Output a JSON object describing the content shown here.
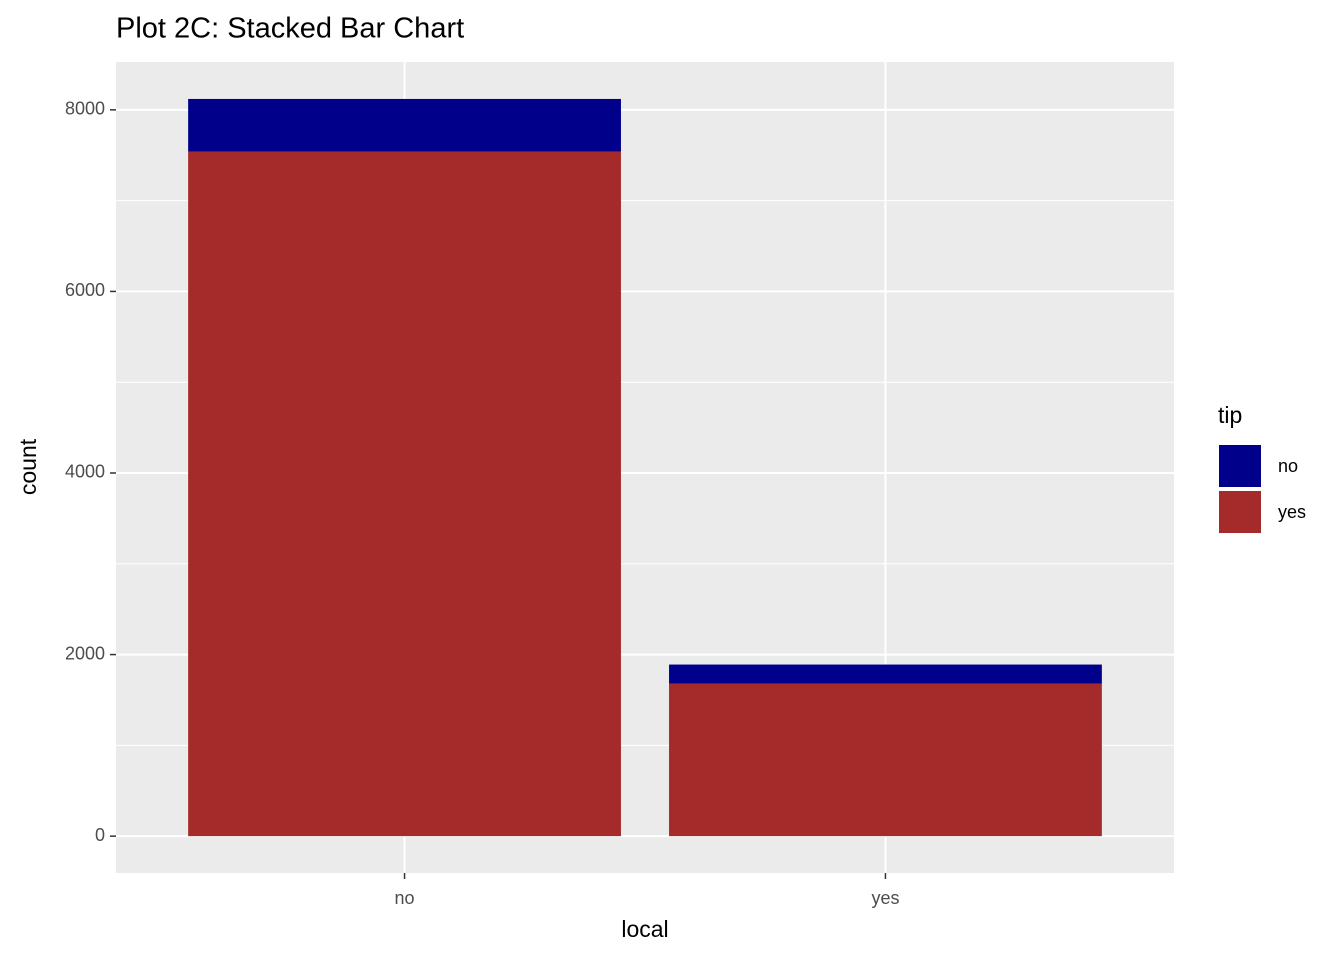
{
  "chart_data": {
    "type": "stacked_bar",
    "title": "Plot 2C: Stacked Bar Chart",
    "x_label": "local",
    "y_label": "count",
    "legend_title": "tip",
    "categories": [
      "no",
      "yes"
    ],
    "series": [
      {
        "name": "no",
        "color": "#00008b",
        "values": [
          580,
          210
        ]
      },
      {
        "name": "yes",
        "color": "#a52a2a",
        "values": [
          7540,
          1680
        ]
      }
    ],
    "ylim": [
      -406,
      8527
    ],
    "yticks": [
      0,
      2000,
      4000,
      6000,
      8000
    ],
    "grid": true
  }
}
